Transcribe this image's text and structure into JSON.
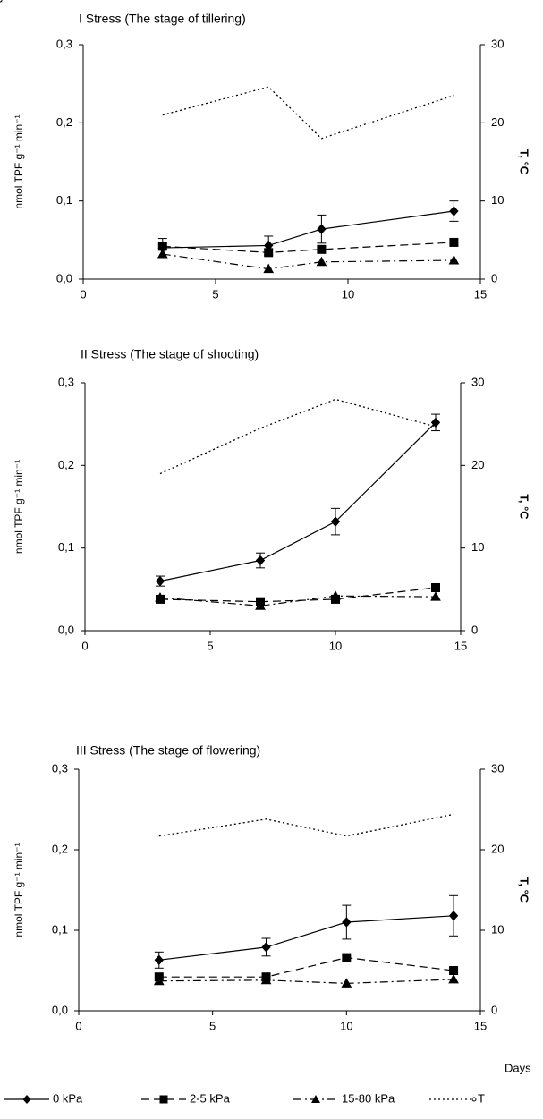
{
  "chart_data": [
    {
      "type": "line",
      "title": "I Stress (The stage of tillering)",
      "ylabel": "nmol TPF g⁻¹ min⁻¹",
      "y2label": "T, °C",
      "xlim": [
        0,
        15
      ],
      "xticks": [
        0,
        5,
        10,
        15
      ],
      "ylim": [
        0,
        0.3
      ],
      "yticks": [
        {
          "value": 0,
          "label": "0,0"
        },
        {
          "value": 0.1,
          "label": "0,1"
        },
        {
          "value": 0.2,
          "label": "0,2"
        },
        {
          "value": 0.3,
          "label": "0,3"
        }
      ],
      "y2lim": [
        0,
        30
      ],
      "y2ticks": [
        0,
        10,
        20,
        30
      ],
      "x": [
        3,
        7,
        9,
        14
      ],
      "series": [
        {
          "color": "#000000",
          "marker": "diamond",
          "dash": "solid",
          "values": [
            0.04,
            0.043,
            0.064,
            0.087
          ],
          "errors": [
            0.012,
            0.012,
            0.018,
            0.013
          ]
        },
        {
          "color": "#000000",
          "marker": "square",
          "dash": "dash",
          "values": [
            0.042,
            0.034,
            0.038,
            0.047
          ]
        },
        {
          "color": "#000000",
          "marker": "triangle",
          "dash": "dashdot",
          "values": [
            0.032,
            0.013,
            0.022,
            0.024
          ]
        },
        {
          "color": "#000000",
          "marker": "circle",
          "dash": "dot",
          "axis": "y2",
          "values": [
            21,
            24.6,
            18,
            23.5
          ]
        }
      ]
    },
    {
      "type": "line",
      "title": "II Stress (The stage of shooting)",
      "ylabel": "nmol TPF g⁻¹ min⁻¹",
      "y2label": "T, °C",
      "xlim": [
        0,
        15
      ],
      "xticks": [
        0,
        5,
        10,
        15
      ],
      "ylim": [
        0,
        0.3
      ],
      "yticks": [
        {
          "value": 0,
          "label": "0,0"
        },
        {
          "value": 0.1,
          "label": "0,1"
        },
        {
          "value": 0.2,
          "label": "0,2"
        },
        {
          "value": 0.3,
          "label": "0,3"
        }
      ],
      "y2lim": [
        0,
        30
      ],
      "y2ticks": [
        0,
        10,
        20,
        30
      ],
      "x": [
        3,
        7,
        10,
        14
      ],
      "series": [
        {
          "color": "#000000",
          "marker": "diamond",
          "dash": "solid",
          "values": [
            0.06,
            0.085,
            0.132,
            0.252
          ],
          "errors": [
            0.006,
            0.009,
            0.016,
            0.01
          ]
        },
        {
          "color": "#000000",
          "marker": "square",
          "dash": "dash",
          "values": [
            0.038,
            0.035,
            0.038,
            0.052
          ]
        },
        {
          "color": "#000000",
          "marker": "triangle",
          "dash": "dashdot",
          "values": [
            0.04,
            0.03,
            0.042,
            0.041
          ]
        },
        {
          "color": "#000000",
          "marker": "circle",
          "dash": "dot",
          "axis": "y2",
          "values": [
            19,
            24.5,
            28,
            24.7
          ]
        }
      ]
    },
    {
      "type": "line",
      "title": "III Stress (The stage of flowering)",
      "ylabel": "nmol TPF g⁻¹ min⁻¹",
      "y2label": "T, °C",
      "xlabel": "Days",
      "xlim": [
        0,
        15
      ],
      "xticks": [
        0,
        5,
        10,
        15
      ],
      "ylim": [
        0,
        0.3
      ],
      "yticks": [
        {
          "value": 0,
          "label": "0,0"
        },
        {
          "value": 0.1,
          "label": "0,1"
        },
        {
          "value": 0.2,
          "label": "0,2"
        },
        {
          "value": 0.3,
          "label": "0,3"
        }
      ],
      "y2lim": [
        0,
        30
      ],
      "y2ticks": [
        0,
        10,
        20,
        30
      ],
      "x": [
        3,
        7,
        10,
        14
      ],
      "series": [
        {
          "name": "0 kPa",
          "color": "#000000",
          "marker": "diamond",
          "dash": "solid",
          "values": [
            0.063,
            0.079,
            0.11,
            0.118
          ],
          "errors": [
            0.01,
            0.011,
            0.021,
            0.025
          ]
        },
        {
          "name": "2-5 kPa",
          "color": "#000000",
          "marker": "square",
          "dash": "dash",
          "values": [
            0.042,
            0.042,
            0.066,
            0.05
          ]
        },
        {
          "name": "15-80 kPa",
          "color": "#000000",
          "marker": "triangle",
          "dash": "dashdot",
          "values": [
            0.037,
            0.038,
            0.034,
            0.039
          ]
        },
        {
          "name": "T",
          "color": "#000000",
          "marker": "circle",
          "dash": "dot",
          "axis": "y2",
          "values": [
            21.7,
            23.8,
            21.7,
            24.4
          ]
        }
      ]
    }
  ]
}
